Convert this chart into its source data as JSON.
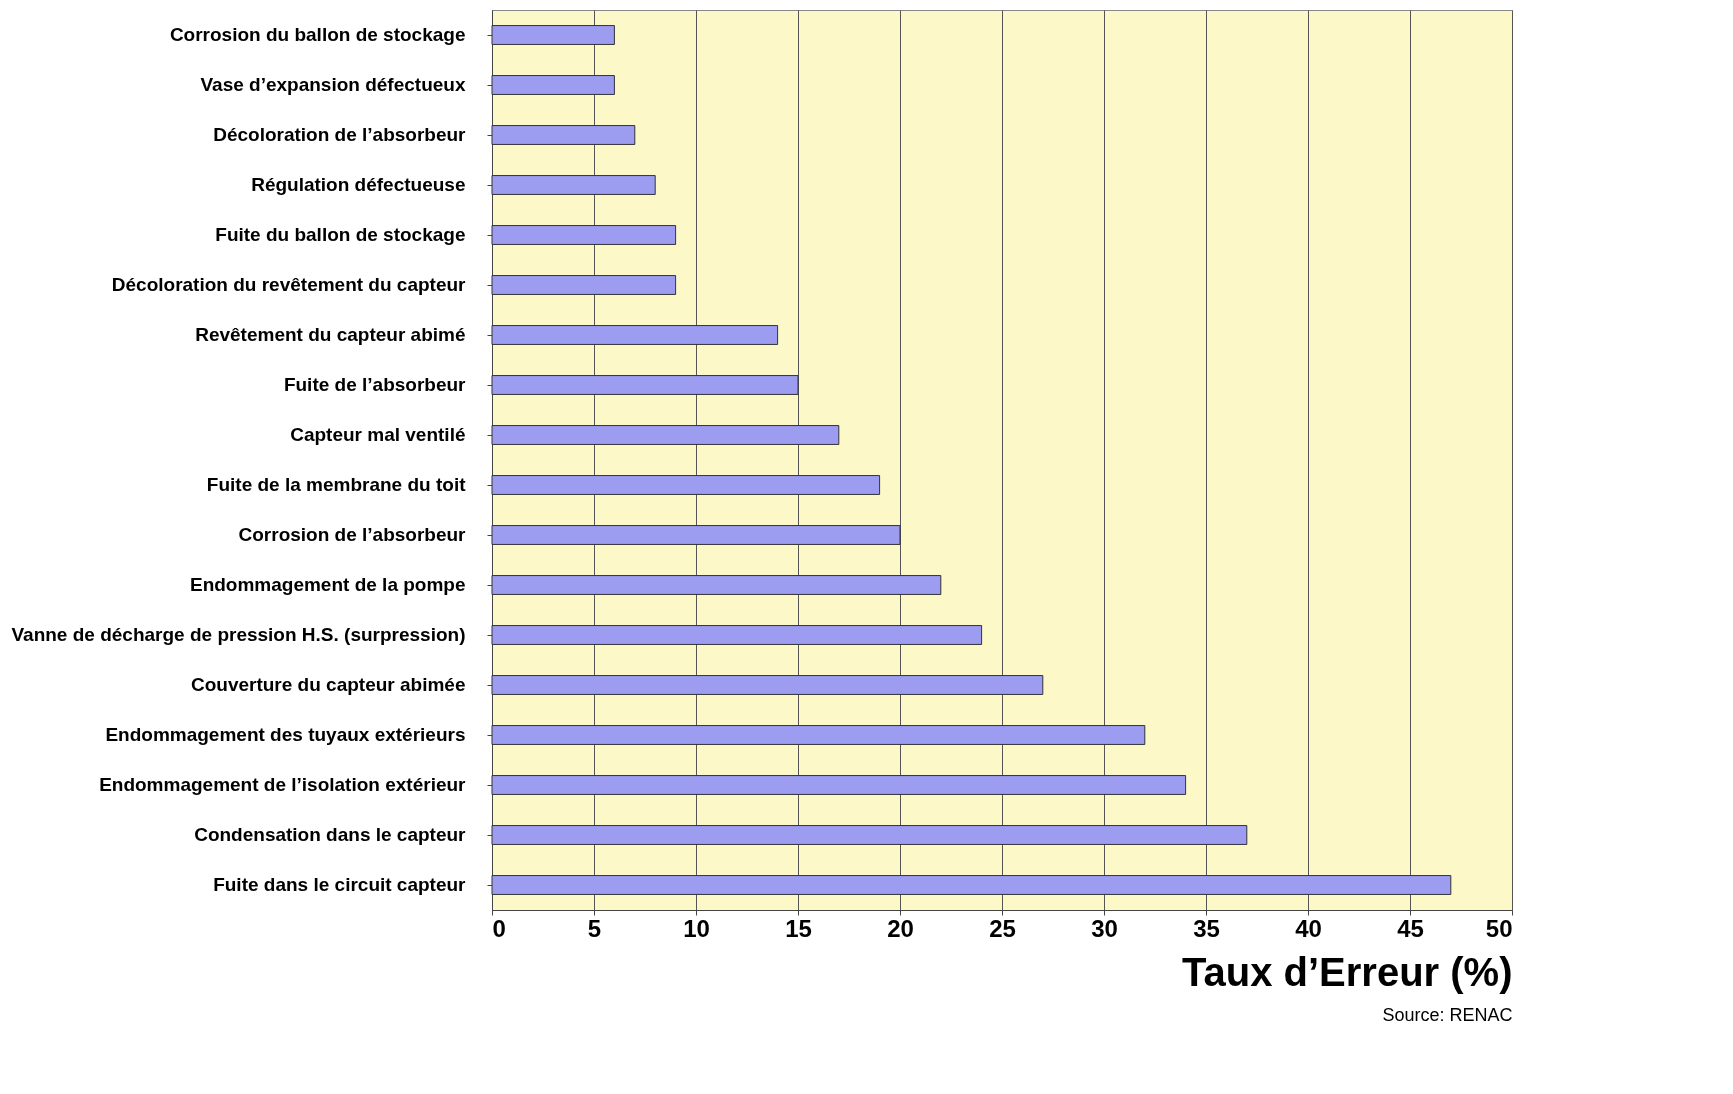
{
  "chart_data": {
    "type": "bar",
    "orientation": "horizontal",
    "categories": [
      "Corrosion du ballon de stockage",
      "Vase d’expansion défectueux",
      "Décoloration de l’absorbeur",
      "Régulation défectueuse",
      "Fuite du ballon de stockage",
      "Décoloration du revêtement du capteur",
      "Revêtement du capteur abimé",
      "Fuite de l’absorbeur",
      "Capteur mal ventilé",
      "Fuite de la membrane du toit",
      "Corrosion de l’absorbeur",
      "Endommagement de la pompe",
      "Vanne de décharge de pression H.S. (surpression)",
      "Couverture du capteur abimée",
      "Endommagement des tuyaux extérieurs",
      "Endommagement de l’isolation extérieur",
      "Condensation dans le capteur",
      "Fuite dans le circuit capteur"
    ],
    "values": [
      6,
      6,
      7,
      8,
      9,
      9,
      14,
      15,
      17,
      19,
      20,
      22,
      24,
      27,
      32,
      34,
      37,
      47
    ],
    "color": "#9c9cf0",
    "xlabel": "Taux d’Erreur (%)",
    "xlim": [
      0,
      50
    ],
    "xticks": [
      0,
      5,
      10,
      15,
      20,
      25,
      30,
      35,
      40,
      45,
      50
    ],
    "grid": "x",
    "annotations": [
      "Source: RENAC"
    ]
  }
}
